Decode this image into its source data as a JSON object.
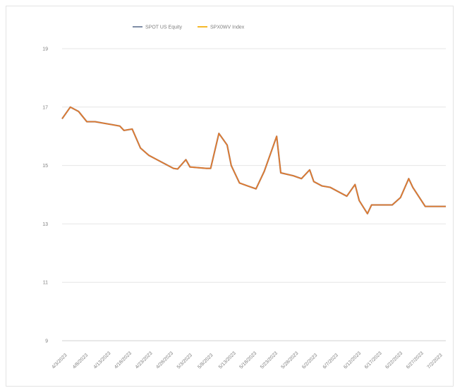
{
  "chart_data": {
    "type": "line",
    "title": "",
    "xlabel": "",
    "ylabel": "",
    "ylim": [
      9,
      19
    ],
    "y_ticks": [
      "9",
      "11",
      "13",
      "15",
      "17",
      "19"
    ],
    "grid": true,
    "legend_position": "top",
    "x_tick_labels": [
      "4/3/2023",
      "4/8/2023",
      "4/13/2023",
      "4/18/2023",
      "4/23/2023",
      "4/28/2023",
      "5/3/2023",
      "5/8/2023",
      "5/13/2023",
      "5/18/2023",
      "5/23/2023",
      "5/28/2023",
      "6/2/2023",
      "6/7/2023",
      "6/12/2023",
      "6/17/2023",
      "6/22/2023",
      "6/27/2023",
      "7/2/2023"
    ],
    "x_range": [
      "2023-04-03",
      "2023-07-05"
    ],
    "series": [
      {
        "name": "SPOT US Equity",
        "color": "#7f8da6",
        "points": [
          [
            "2023-04-03",
            16.6
          ],
          [
            "2023-04-05",
            17.0
          ],
          [
            "2023-04-07",
            16.85
          ],
          [
            "2023-04-09",
            16.5
          ],
          [
            "2023-04-11",
            16.5
          ],
          [
            "2023-04-13",
            16.45
          ],
          [
            "2023-04-15",
            16.4
          ],
          [
            "2023-04-17",
            16.35
          ],
          [
            "2023-04-18",
            16.2
          ],
          [
            "2023-04-20",
            16.25
          ],
          [
            "2023-04-22",
            15.6
          ],
          [
            "2023-04-24",
            15.35
          ],
          [
            "2023-04-26",
            15.2
          ],
          [
            "2023-04-28",
            15.05
          ],
          [
            "2023-04-30",
            14.9
          ],
          [
            "2023-05-01",
            14.88
          ],
          [
            "2023-05-03",
            15.2
          ],
          [
            "2023-05-04",
            14.95
          ],
          [
            "2023-05-08",
            14.9
          ],
          [
            "2023-05-09",
            14.9
          ],
          [
            "2023-05-11",
            16.1
          ],
          [
            "2023-05-13",
            15.7
          ],
          [
            "2023-05-14",
            15.0
          ],
          [
            "2023-05-16",
            14.4
          ],
          [
            "2023-05-18",
            14.3
          ],
          [
            "2023-05-20",
            14.2
          ],
          [
            "2023-05-22",
            14.8
          ],
          [
            "2023-05-23",
            15.2
          ],
          [
            "2023-05-25",
            16.0
          ],
          [
            "2023-05-26",
            14.75
          ],
          [
            "2023-05-29",
            14.65
          ],
          [
            "2023-05-31",
            14.55
          ],
          [
            "2023-06-02",
            14.85
          ],
          [
            "2023-06-03",
            14.45
          ],
          [
            "2023-06-05",
            14.3
          ],
          [
            "2023-06-07",
            14.25
          ],
          [
            "2023-06-09",
            14.1
          ],
          [
            "2023-06-11",
            13.95
          ],
          [
            "2023-06-13",
            14.35
          ],
          [
            "2023-06-14",
            13.8
          ],
          [
            "2023-06-16",
            13.35
          ],
          [
            "2023-06-17",
            13.65
          ],
          [
            "2023-06-19",
            13.65
          ],
          [
            "2023-06-22",
            13.65
          ],
          [
            "2023-06-24",
            13.9
          ],
          [
            "2023-06-26",
            14.55
          ],
          [
            "2023-06-27",
            14.25
          ],
          [
            "2023-06-30",
            13.6
          ],
          [
            "2023-07-01",
            13.6
          ],
          [
            "2023-07-04",
            13.6
          ],
          [
            "2023-07-05",
            13.6
          ]
        ]
      },
      {
        "name": "SPX0WV Index",
        "color": "#f5b92a",
        "points": [
          [
            "2023-04-03",
            16.6
          ],
          [
            "2023-04-05",
            17.0
          ],
          [
            "2023-04-07",
            16.85
          ],
          [
            "2023-04-09",
            16.5
          ],
          [
            "2023-04-11",
            16.5
          ],
          [
            "2023-04-13",
            16.45
          ],
          [
            "2023-04-15",
            16.4
          ],
          [
            "2023-04-17",
            16.35
          ],
          [
            "2023-04-18",
            16.2
          ],
          [
            "2023-04-20",
            16.25
          ],
          [
            "2023-04-22",
            15.6
          ],
          [
            "2023-04-24",
            15.35
          ],
          [
            "2023-04-26",
            15.2
          ],
          [
            "2023-04-28",
            15.05
          ],
          [
            "2023-04-30",
            14.9
          ],
          [
            "2023-05-01",
            14.88
          ],
          [
            "2023-05-03",
            15.2
          ],
          [
            "2023-05-04",
            14.95
          ],
          [
            "2023-05-08",
            14.9
          ],
          [
            "2023-05-09",
            14.9
          ],
          [
            "2023-05-11",
            16.1
          ],
          [
            "2023-05-13",
            15.7
          ],
          [
            "2023-05-14",
            15.0
          ],
          [
            "2023-05-16",
            14.4
          ],
          [
            "2023-05-18",
            14.3
          ],
          [
            "2023-05-20",
            14.2
          ],
          [
            "2023-05-22",
            14.8
          ],
          [
            "2023-05-23",
            15.2
          ],
          [
            "2023-05-25",
            16.0
          ],
          [
            "2023-05-26",
            14.75
          ],
          [
            "2023-05-29",
            14.65
          ],
          [
            "2023-05-31",
            14.55
          ],
          [
            "2023-06-02",
            14.85
          ],
          [
            "2023-06-03",
            14.45
          ],
          [
            "2023-06-05",
            14.3
          ],
          [
            "2023-06-07",
            14.25
          ],
          [
            "2023-06-09",
            14.1
          ],
          [
            "2023-06-11",
            13.95
          ],
          [
            "2023-06-13",
            14.35
          ],
          [
            "2023-06-14",
            13.8
          ],
          [
            "2023-06-16",
            13.35
          ],
          [
            "2023-06-17",
            13.65
          ],
          [
            "2023-06-19",
            13.65
          ],
          [
            "2023-06-22",
            13.65
          ],
          [
            "2023-06-24",
            13.9
          ],
          [
            "2023-06-26",
            14.55
          ],
          [
            "2023-06-27",
            14.25
          ],
          [
            "2023-06-30",
            13.6
          ],
          [
            "2023-07-01",
            13.6
          ],
          [
            "2023-07-04",
            13.6
          ],
          [
            "2023-07-05",
            13.6
          ]
        ]
      }
    ],
    "overlay_color": "#e07a2e"
  }
}
